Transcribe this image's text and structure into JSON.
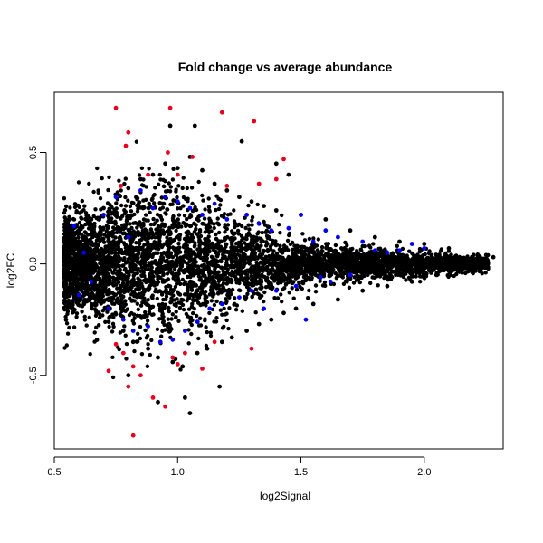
{
  "chart_data": {
    "type": "scatter",
    "title": "Fold change vs average abundance",
    "xlabel": "log2Signal",
    "ylabel": "log2FC",
    "xlim": [
      0.5,
      2.32
    ],
    "ylim": [
      -0.83,
      0.77
    ],
    "x_ticks": [
      0.5,
      1.0,
      1.5,
      2.0
    ],
    "x_tick_labels": [
      "0.5",
      "1.0",
      "1.5",
      "2.0"
    ],
    "y_ticks": [
      -0.5,
      0.0,
      0.5
    ],
    "y_tick_labels": [
      "-0.5",
      "0.0",
      "0.5"
    ],
    "grid": false,
    "legend": "none",
    "series_colors": {
      "black": "#000000",
      "blue": "#0000ff",
      "red": "#e8001c"
    },
    "series": [
      {
        "color": "black",
        "points": [
          [
            0.55,
            0.08
          ],
          [
            0.58,
            -0.12
          ],
          [
            0.6,
            0.15
          ],
          [
            0.62,
            -0.18
          ],
          [
            0.65,
            0.2
          ],
          [
            0.68,
            -0.22
          ],
          [
            0.7,
            0.25
          ],
          [
            0.72,
            -0.26
          ],
          [
            0.75,
            0.3
          ],
          [
            0.78,
            -0.3
          ],
          [
            0.8,
            0.34
          ],
          [
            0.82,
            -0.35
          ],
          [
            0.85,
            0.38
          ],
          [
            0.88,
            -0.38
          ],
          [
            0.9,
            0.4
          ],
          [
            0.92,
            -0.42
          ],
          [
            0.95,
            0.45
          ],
          [
            0.98,
            -0.44
          ],
          [
            1.0,
            0.43
          ],
          [
            1.02,
            -0.46
          ],
          [
            1.05,
            0.48
          ],
          [
            1.08,
            -0.4
          ],
          [
            1.1,
            0.42
          ],
          [
            1.12,
            -0.38
          ],
          [
            1.15,
            0.36
          ],
          [
            1.18,
            -0.35
          ],
          [
            1.2,
            0.33
          ],
          [
            1.22,
            -0.33
          ],
          [
            1.25,
            0.3
          ],
          [
            1.28,
            -0.3
          ],
          [
            1.3,
            0.28
          ],
          [
            1.33,
            -0.27
          ],
          [
            1.35,
            0.26
          ],
          [
            1.38,
            -0.25
          ],
          [
            1.4,
            0.24
          ],
          [
            1.43,
            -0.22
          ],
          [
            1.45,
            0.4
          ],
          [
            1.48,
            -0.2
          ],
          [
            1.5,
            0.22
          ],
          [
            1.55,
            -0.18
          ],
          [
            1.6,
            0.2
          ],
          [
            1.65,
            -0.16
          ],
          [
            1.7,
            0.15
          ],
          [
            1.75,
            -0.12
          ],
          [
            1.8,
            0.12
          ],
          [
            1.85,
            -0.1
          ],
          [
            1.9,
            0.1
          ],
          [
            1.95,
            -0.08
          ],
          [
            2.0,
            0.09
          ],
          [
            2.05,
            -0.05
          ],
          [
            2.1,
            0.07
          ],
          [
            2.15,
            -0.03
          ],
          [
            2.2,
            0.04
          ],
          [
            2.28,
            0.03
          ],
          [
            0.97,
            0.62
          ],
          [
            1.07,
            0.62
          ],
          [
            1.03,
            -0.6
          ],
          [
            1.05,
            -0.67
          ],
          [
            1.17,
            -0.55
          ],
          [
            0.92,
            -0.62
          ],
          [
            1.26,
            0.55
          ],
          [
            0.8,
            -0.5
          ],
          [
            1.4,
            0.45
          ]
        ]
      },
      {
        "color": "blue",
        "points": [
          [
            0.58,
            0.17
          ],
          [
            0.6,
            -0.14
          ],
          [
            0.62,
            0.05
          ],
          [
            0.65,
            -0.08
          ],
          [
            0.7,
            0.22
          ],
          [
            0.72,
            -0.2
          ],
          [
            0.75,
            0.3
          ],
          [
            0.78,
            -0.25
          ],
          [
            0.8,
            0.12
          ],
          [
            0.82,
            -0.3
          ],
          [
            0.85,
            0.33
          ],
          [
            0.88,
            -0.28
          ],
          [
            0.9,
            0.25
          ],
          [
            0.93,
            -0.35
          ],
          [
            0.95,
            0.3
          ],
          [
            0.98,
            -0.34
          ],
          [
            1.0,
            0.28
          ],
          [
            1.03,
            -0.3
          ],
          [
            1.05,
            0.25
          ],
          [
            1.08,
            -0.26
          ],
          [
            1.1,
            0.22
          ],
          [
            1.13,
            -0.2
          ],
          [
            1.15,
            0.27
          ],
          [
            1.18,
            -0.18
          ],
          [
            1.2,
            0.2
          ],
          [
            1.25,
            -0.15
          ],
          [
            1.28,
            0.22
          ],
          [
            1.3,
            -0.12
          ],
          [
            1.33,
            0.18
          ],
          [
            1.35,
            -0.2
          ],
          [
            1.38,
            0.15
          ],
          [
            1.4,
            -0.12
          ],
          [
            1.45,
            0.16
          ],
          [
            1.48,
            -0.1
          ],
          [
            1.5,
            0.22
          ],
          [
            1.52,
            -0.25
          ],
          [
            1.55,
            0.1
          ],
          [
            1.58,
            -0.06
          ],
          [
            1.6,
            0.15
          ],
          [
            1.62,
            -0.08
          ],
          [
            1.65,
            0.12
          ],
          [
            1.7,
            -0.05
          ],
          [
            1.75,
            0.1
          ],
          [
            1.8,
            0.06
          ],
          [
            1.85,
            0.05
          ],
          [
            1.9,
            0.06
          ],
          [
            1.95,
            0.09
          ],
          [
            2.0,
            0.07
          ]
        ]
      },
      {
        "color": "red",
        "points": [
          [
            0.75,
            0.7
          ],
          [
            0.97,
            0.7
          ],
          [
            1.18,
            0.68
          ],
          [
            1.31,
            0.64
          ],
          [
            0.8,
            0.59
          ],
          [
            0.79,
            0.53
          ],
          [
            0.96,
            0.5
          ],
          [
            1.06,
            0.48
          ],
          [
            1.43,
            0.47
          ],
          [
            1.4,
            0.38
          ],
          [
            0.88,
            0.4
          ],
          [
            1.0,
            0.4
          ],
          [
            1.2,
            0.35
          ],
          [
            1.33,
            0.36
          ],
          [
            0.77,
            0.35
          ],
          [
            0.72,
            -0.48
          ],
          [
            0.75,
            -0.36
          ],
          [
            0.78,
            -0.4
          ],
          [
            0.8,
            -0.55
          ],
          [
            0.82,
            -0.46
          ],
          [
            0.85,
            -0.5
          ],
          [
            0.9,
            -0.6
          ],
          [
            0.95,
            -0.64
          ],
          [
            0.98,
            -0.42
          ],
          [
            1.0,
            -0.45
          ],
          [
            1.03,
            -0.4
          ],
          [
            1.1,
            -0.47
          ],
          [
            1.15,
            -0.35
          ],
          [
            1.3,
            -0.38
          ],
          [
            0.82,
            -0.77
          ]
        ]
      }
    ]
  }
}
